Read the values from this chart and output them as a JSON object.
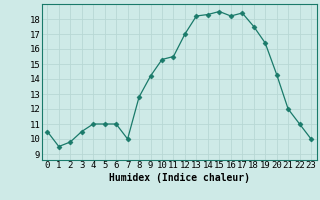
{
  "x": [
    0,
    1,
    2,
    3,
    4,
    5,
    6,
    7,
    8,
    9,
    10,
    11,
    12,
    13,
    14,
    15,
    16,
    17,
    18,
    19,
    20,
    21,
    22,
    23
  ],
  "y": [
    10.5,
    9.5,
    9.8,
    10.5,
    11.0,
    11.0,
    11.0,
    10.0,
    12.8,
    14.2,
    15.3,
    15.5,
    17.0,
    18.2,
    18.3,
    18.5,
    18.2,
    18.4,
    17.5,
    16.4,
    14.3,
    12.0,
    11.0,
    10.0
  ],
  "line_color": "#1a7a6a",
  "marker": "D",
  "marker_size": 2.5,
  "bg_color": "#ceeae7",
  "grid_color": "#b8d8d4",
  "xlabel": "Humidex (Indice chaleur)",
  "ylabel_ticks": [
    9,
    10,
    11,
    12,
    13,
    14,
    15,
    16,
    17,
    18
  ],
  "ylim": [
    8.6,
    19.0
  ],
  "xlim": [
    -0.5,
    23.5
  ],
  "xlabel_fontsize": 7,
  "tick_fontsize": 6.5
}
